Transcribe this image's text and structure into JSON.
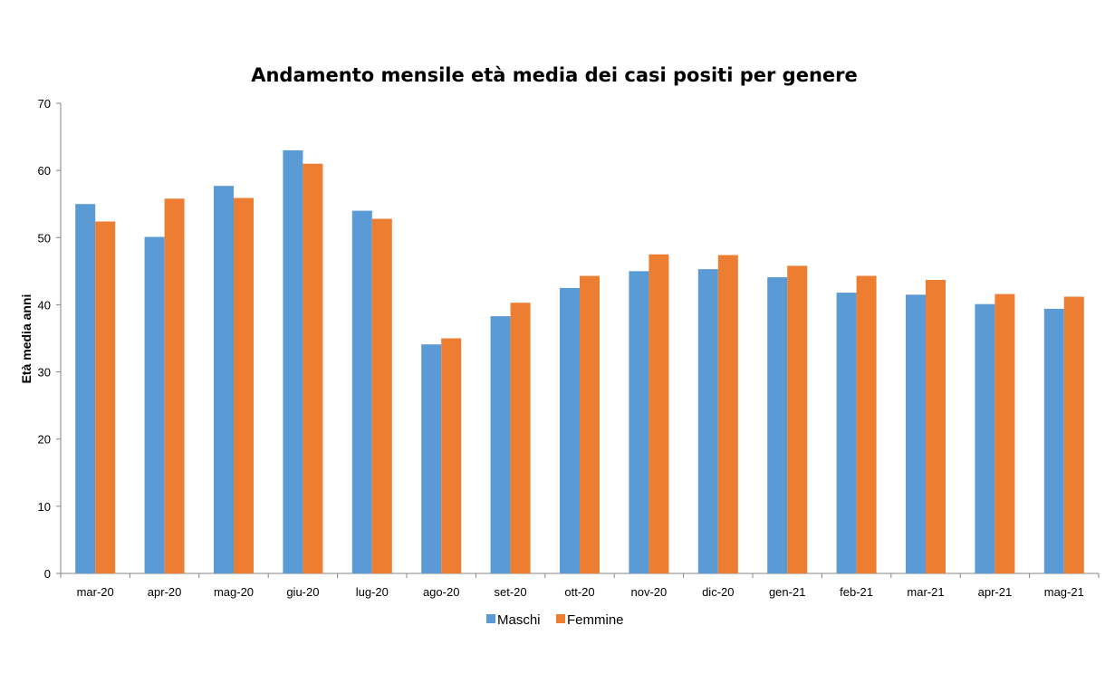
{
  "chart_data": {
    "type": "bar",
    "title": "Andamento mensile età media dei casi positi per genere",
    "xlabel": "",
    "ylabel": "Età media anni",
    "ylim": [
      0,
      70
    ],
    "yticks": [
      0,
      10,
      20,
      30,
      40,
      50,
      60,
      70
    ],
    "grid": false,
    "legend_position": "bottom",
    "categories": [
      "mar-20",
      "apr-20",
      "mag-20",
      "giu-20",
      "lug-20",
      "ago-20",
      "set-20",
      "ott-20",
      "nov-20",
      "dic-20",
      "gen-21",
      "feb-21",
      "mar-21",
      "apr-21",
      "mag-21"
    ],
    "series": [
      {
        "name": "Maschi",
        "color": "#5B9BD5",
        "values": [
          55.0,
          50.1,
          57.7,
          63.0,
          54.0,
          34.1,
          38.3,
          42.5,
          45.0,
          45.3,
          44.1,
          41.8,
          41.5,
          40.1,
          39.4
        ]
      },
      {
        "name": "Femmine",
        "color": "#ED7D31",
        "values": [
          52.4,
          55.8,
          55.9,
          61.0,
          52.8,
          35.0,
          40.3,
          44.3,
          47.5,
          47.4,
          45.8,
          44.3,
          43.7,
          41.6,
          41.2
        ]
      }
    ]
  }
}
